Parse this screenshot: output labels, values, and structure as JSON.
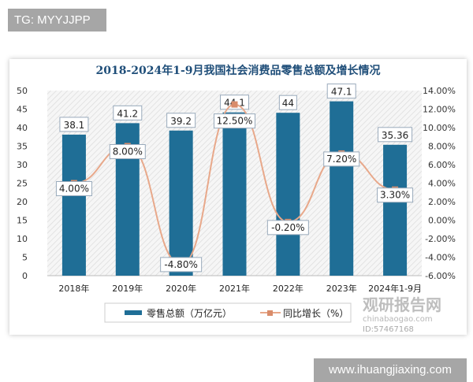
{
  "tags": {
    "top": "TG: MYYJJPP",
    "bottom": "www.ihuangjiaxing.com"
  },
  "watermark": {
    "brand": "观研报告网",
    "sub": "chinabaogao.com",
    "id": "ID:57467168"
  },
  "chart_data": {
    "type": "bar+line",
    "title": "2018-2024年1-9月我国社会消费品零售总额及增长情况",
    "categories": [
      "2018年",
      "2019年",
      "2020年",
      "2021年",
      "2022年",
      "2023年",
      "2024年1-9月"
    ],
    "series": [
      {
        "name": "零售总额（万亿元）",
        "type": "bar",
        "axis": "left",
        "color": "#1f6e96",
        "values": [
          38.1,
          41.2,
          39.2,
          44.1,
          44,
          47.1,
          35.36
        ],
        "labels": [
          "38.1",
          "41.2",
          "39.2",
          "44.1",
          "44",
          "47.1",
          "35.36"
        ]
      },
      {
        "name": "同比增长（%）",
        "type": "line",
        "axis": "right",
        "color": "#e8a88a",
        "values": [
          4.0,
          8.0,
          -4.8,
          12.5,
          -0.2,
          7.2,
          3.3
        ],
        "labels": [
          "4.00%",
          "8.00%",
          "-4.80%",
          "12.50%",
          "-0.20%",
          "7.20%",
          "3.30%"
        ]
      }
    ],
    "left_axis": {
      "ylim": [
        0,
        50
      ],
      "ticks": [
        "0",
        "5",
        "10",
        "15",
        "20",
        "25",
        "30",
        "35",
        "40",
        "45",
        "50"
      ]
    },
    "right_axis": {
      "ylim": [
        -6,
        14
      ],
      "ticks": [
        "-6.00%",
        "-4.00%",
        "-2.00%",
        "0.00%",
        "2.00%",
        "4.00%",
        "6.00%",
        "8.00%",
        "10.00%",
        "12.00%",
        "14.00%"
      ]
    },
    "legend": "bottom",
    "background": "hatched"
  }
}
